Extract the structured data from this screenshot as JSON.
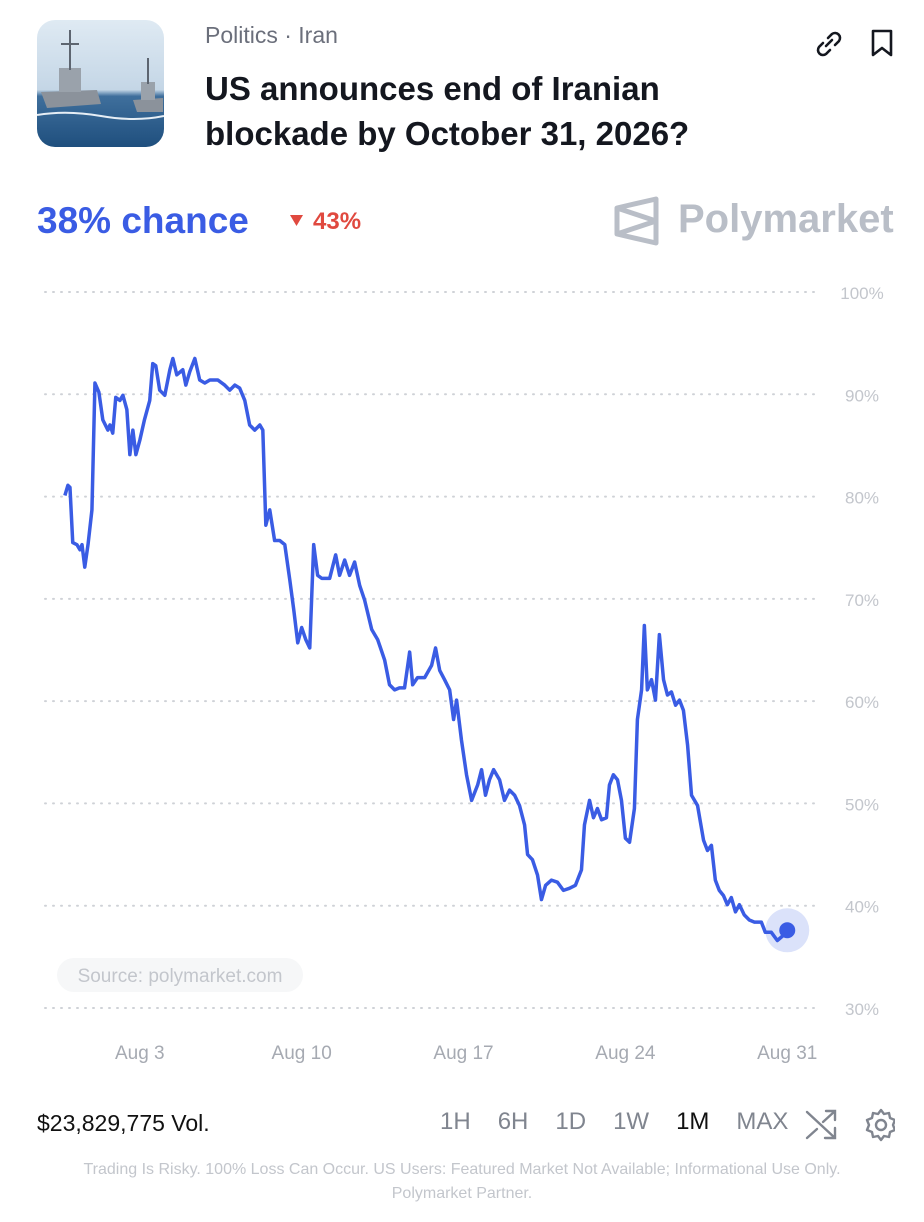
{
  "header": {
    "category": "Politics · Iran",
    "title": "US announces end of Iranian blockade by October 31, 2026?"
  },
  "summary": {
    "chance": "38% chance",
    "change": "43%",
    "brand": "Polymarket"
  },
  "chart_data": {
    "type": "line",
    "color": "#3a5ce4",
    "grid": true,
    "source": "Source: polymarket.com",
    "x": [
      -0.24,
      -0.11,
      -0.02,
      0.1,
      0.28,
      0.41,
      0.5,
      0.62,
      0.76,
      0.93,
      1.06,
      1.23,
      1.4,
      1.62,
      1.71,
      1.83,
      1.96,
      2.14,
      2.27,
      2.44,
      2.57,
      2.7,
      2.83,
      3.0,
      3.2,
      3.43,
      3.56,
      3.69,
      3.86,
      4.08,
      4.3,
      4.43,
      4.6,
      4.86,
      4.99,
      5.16,
      5.38,
      5.59,
      5.81,
      6.03,
      6.37,
      6.67,
      6.89,
      7.11,
      7.32,
      7.54,
      7.75,
      7.97,
      8.19,
      8.32,
      8.45,
      8.62,
      8.83,
      9.05,
      9.27,
      9.49,
      9.66,
      9.83,
      10.0,
      10.18,
      10.35,
      10.52,
      10.69,
      10.87,
      11.21,
      11.47,
      11.64,
      11.86,
      12.07,
      12.29,
      12.51,
      12.72,
      13.03,
      13.29,
      13.59,
      13.8,
      14.02,
      14.23,
      14.45,
      14.67,
      14.8,
      15.01,
      15.32,
      15.62,
      15.79,
      15.97,
      16.18,
      16.4,
      16.57,
      16.7,
      16.91,
      17.13,
      17.35,
      17.61,
      17.78,
      17.95,
      18.12,
      18.3,
      18.56,
      18.77,
      18.99,
      19.21,
      19.42,
      19.64,
      19.77,
      19.98,
      20.2,
      20.37,
      20.55,
      20.8,
      21.06,
      21.32,
      21.58,
      21.84,
      22.1,
      22.23,
      22.45,
      22.62,
      22.79,
      22.97,
      23.18,
      23.31,
      23.48,
      23.66,
      23.83,
      24.0,
      24.18,
      24.39,
      24.52,
      24.7,
      24.82,
      24.95,
      25.13,
      25.3,
      25.47,
      25.65,
      25.82,
      25.99,
      26.17,
      26.34,
      26.51,
      26.69,
      26.86,
      27.12,
      27.38,
      27.55,
      27.72,
      27.89,
      28.06,
      28.24,
      28.41,
      28.58,
      28.76,
      28.93,
      29.14,
      29.36,
      29.58,
      29.88,
      30.05,
      30.31,
      30.57,
      30.83,
      31.0
    ],
    "values": [
      80.1,
      81.1,
      80.9,
      75.5,
      75.3,
      74.8,
      75.3,
      73.1,
      75.3,
      78.7,
      91.1,
      90.2,
      87.5,
      86.5,
      87.0,
      86.2,
      89.7,
      89.4,
      89.9,
      88.5,
      84.1,
      86.5,
      84.1,
      85.5,
      87.5,
      89.4,
      93.0,
      92.8,
      90.4,
      89.9,
      92.4,
      93.5,
      91.9,
      92.4,
      90.9,
      92.2,
      93.5,
      91.4,
      91.1,
      91.4,
      91.4,
      90.9,
      90.4,
      90.9,
      90.6,
      89.4,
      87.0,
      86.5,
      87.0,
      86.5,
      77.2,
      78.7,
      75.7,
      75.7,
      75.3,
      71.8,
      68.9,
      65.7,
      67.2,
      66.0,
      65.2,
      75.3,
      72.3,
      72.0,
      72.0,
      74.3,
      72.3,
      73.8,
      72.3,
      73.6,
      71.3,
      69.9,
      67.0,
      66.0,
      64.0,
      61.6,
      61.1,
      61.3,
      61.3,
      64.8,
      61.6,
      62.3,
      62.3,
      63.5,
      65.2,
      63.0,
      62.1,
      61.1,
      58.2,
      60.1,
      56.2,
      52.8,
      50.3,
      51.8,
      53.3,
      50.8,
      52.3,
      53.3,
      52.3,
      50.3,
      51.3,
      50.8,
      49.8,
      47.9,
      45.0,
      44.5,
      43.0,
      40.6,
      42.0,
      42.5,
      42.3,
      41.5,
      41.7,
      42.0,
      43.5,
      47.9,
      50.3,
      48.6,
      49.5,
      48.4,
      48.6,
      51.8,
      52.8,
      52.3,
      50.3,
      46.6,
      46.2,
      49.5,
      58.2,
      61.1,
      67.4,
      61.1,
      62.1,
      60.1,
      66.5,
      62.1,
      60.6,
      60.9,
      59.6,
      60.1,
      59.1,
      55.7,
      50.8,
      49.8,
      46.4,
      45.4,
      45.9,
      42.5,
      41.5,
      41.0,
      40.1,
      40.8,
      39.4,
      40.1,
      39.1,
      38.6,
      38.4,
      38.4,
      37.4,
      37.4,
      36.6,
      37.1,
      37.6
    ],
    "xlim": [
      -1.1,
      32.2
    ],
    "ylim": [
      30,
      100
    ],
    "xticks": [
      {
        "value": 3,
        "label": "Aug 3"
      },
      {
        "value": 10,
        "label": "Aug 10"
      },
      {
        "value": 17,
        "label": "Aug 17"
      },
      {
        "value": 24,
        "label": "Aug 24"
      },
      {
        "value": 31,
        "label": "Aug 31"
      }
    ],
    "yticks": [
      {
        "value": 30,
        "label": "30%"
      },
      {
        "value": 40,
        "label": "40%"
      },
      {
        "value": 50,
        "label": "50%"
      },
      {
        "value": 60,
        "label": "60%"
      },
      {
        "value": 70,
        "label": "70%"
      },
      {
        "value": 80,
        "label": "80%"
      },
      {
        "value": 90,
        "label": "90%"
      },
      {
        "value": 100,
        "label": "100%"
      }
    ]
  },
  "footer": {
    "volume": "$23,829,775 Vol.",
    "ranges": [
      "1H",
      "6H",
      "1D",
      "1W",
      "1M",
      "MAX"
    ],
    "active_range": "1M",
    "disclaimer": [
      "Trading Is Risky. 100% Loss Can Occur. US Users: Featured Market Not Available; Informational Use Only.",
      "Polymarket Partner."
    ]
  }
}
